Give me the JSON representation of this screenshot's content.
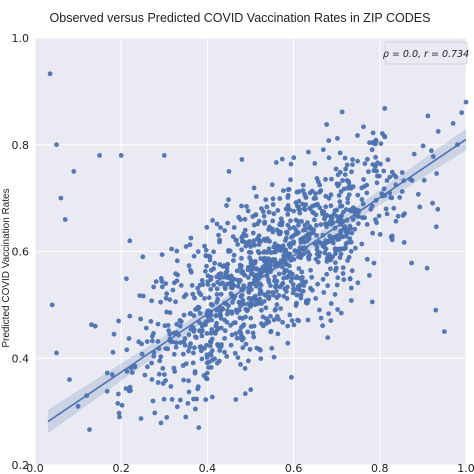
{
  "chart_data": {
    "type": "scatter",
    "title": "Observed versus Predicted COVID Vaccination Rates in ZIP CODES",
    "xlabel": "",
    "ylabel": "Predicted COVID Vaccination Rates",
    "xlim": [
      0.0,
      1.0
    ],
    "ylim": [
      0.2,
      1.0
    ],
    "xticks": [
      "0.0",
      "0.2",
      "0.4",
      "0.6",
      "0.8",
      "1.0"
    ],
    "yticks": [
      "0.2",
      "0.4",
      "0.6",
      "0.8",
      "1.0"
    ],
    "legend": "ρ = 0.0, r = 0.734",
    "legend_position": "top-right",
    "grid": true,
    "background": "#eaeaf2",
    "point_color": "#4c72b0",
    "regression": {
      "intercept": 0.265,
      "slope": 0.545,
      "x_range": [
        0.03,
        1.0
      ]
    },
    "outliers": [
      [
        0.035,
        0.933
      ],
      [
        0.05,
        0.8
      ],
      [
        0.06,
        0.7
      ],
      [
        0.07,
        0.66
      ],
      [
        0.09,
        0.75
      ],
      [
        0.15,
        0.78
      ],
      [
        0.1,
        0.31
      ],
      [
        0.08,
        0.36
      ],
      [
        0.05,
        0.41
      ],
      [
        0.04,
        0.5
      ],
      [
        0.2,
        0.78
      ],
      [
        0.22,
        0.62
      ],
      [
        0.25,
        0.59
      ],
      [
        0.14,
        0.46
      ],
      [
        0.12,
        0.33
      ],
      [
        0.3,
        0.78
      ],
      [
        0.35,
        0.29
      ],
      [
        0.38,
        0.27
      ],
      [
        0.95,
        0.45
      ],
      [
        0.93,
        0.49
      ],
      [
        0.98,
        0.8
      ],
      [
        0.97,
        0.84
      ],
      [
        0.99,
        0.86
      ],
      [
        1.0,
        0.88
      ],
      [
        0.45,
        0.75
      ]
    ]
  }
}
